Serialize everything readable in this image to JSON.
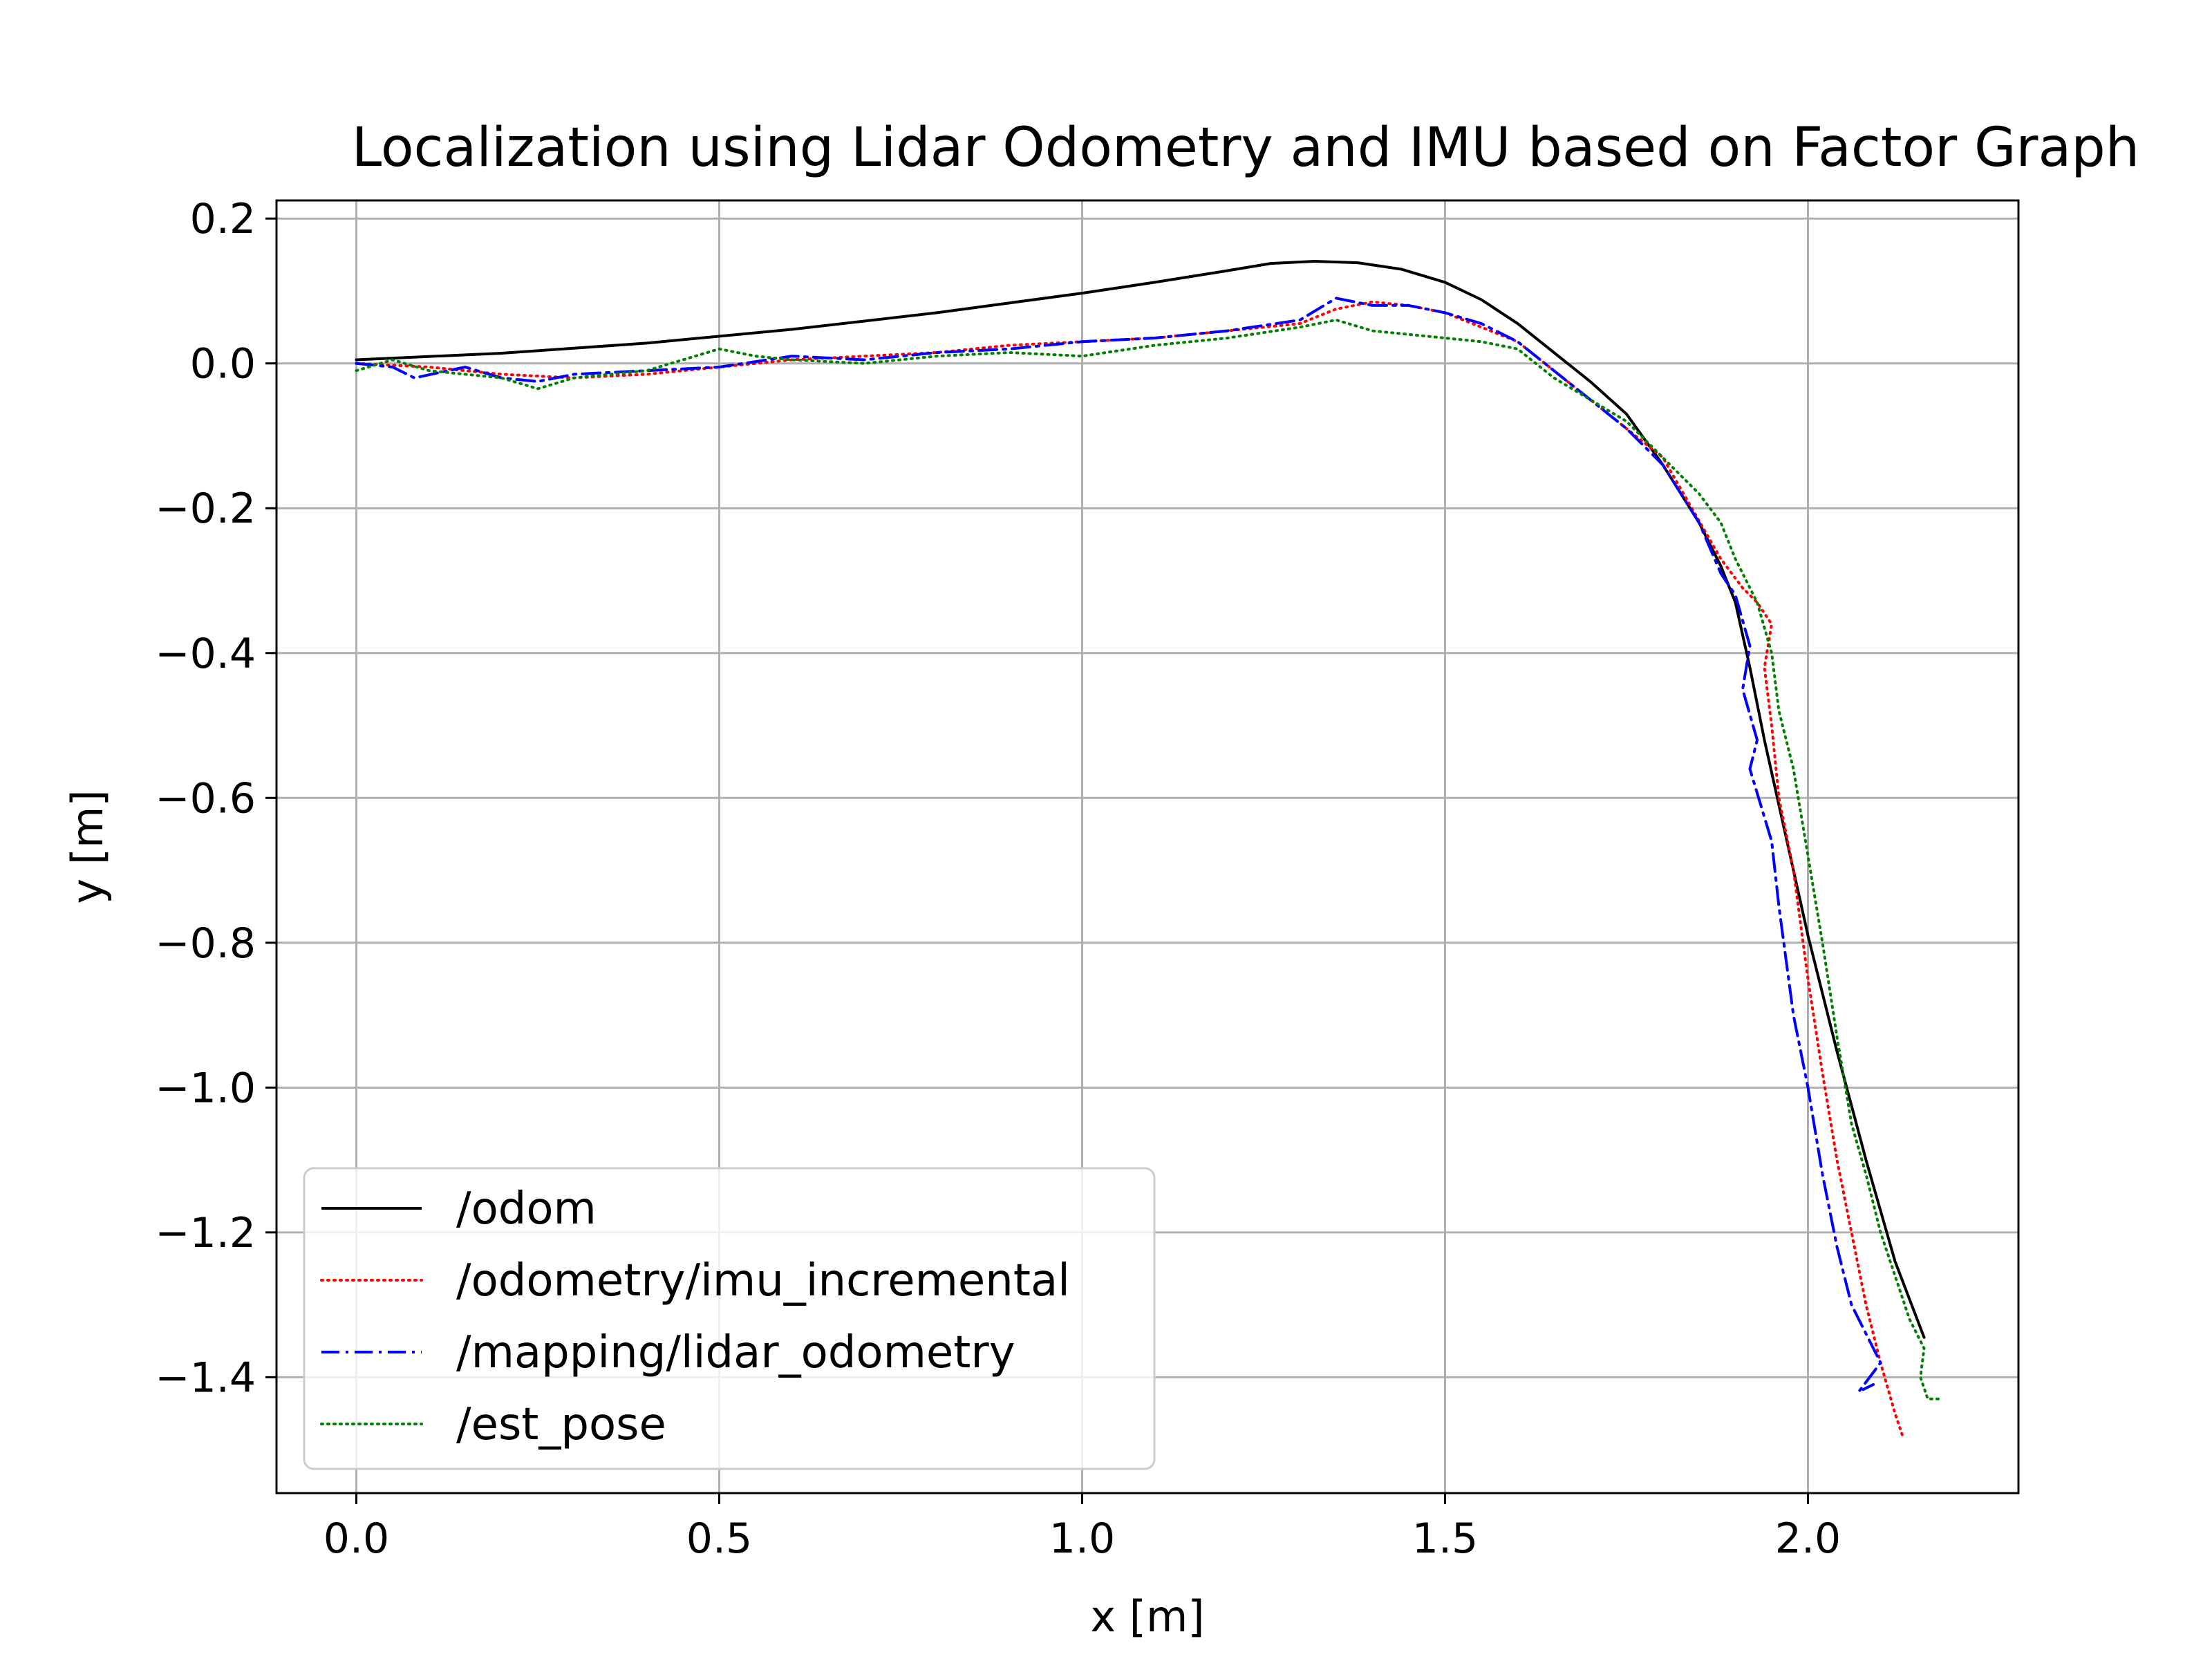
{
  "chart_data": {
    "type": "line",
    "title": "Localization using Lidar Odometry and IMU based on Factor Graph",
    "xlabel": "x [m]",
    "ylabel": "y [m]",
    "xlim": [
      -0.11,
      2.29
    ],
    "ylim": [
      -1.56,
      0.225
    ],
    "grid": true,
    "legend_position": "bottom-left",
    "x_ticks": [
      0.0,
      0.5,
      1.0,
      1.5,
      2.0
    ],
    "x_tick_labels": [
      "0.0",
      "0.5",
      "1.0",
      "1.5",
      "2.0"
    ],
    "y_ticks": [
      0.2,
      0.0,
      -0.2,
      -0.4,
      -0.6,
      -0.8,
      -1.0,
      -1.2,
      -1.4
    ],
    "y_tick_labels": [
      "0.2",
      "0.0",
      "−0.2",
      "−0.4",
      "−0.6",
      "−0.8",
      "−1.0",
      "−1.2",
      "−1.4"
    ],
    "series": [
      {
        "name": "/odom",
        "color": "#000000",
        "style": "solid",
        "x": [
          0.0,
          0.2,
          0.4,
          0.6,
          0.8,
          1.0,
          1.1,
          1.2,
          1.26,
          1.32,
          1.38,
          1.44,
          1.5,
          1.55,
          1.6,
          1.65,
          1.7,
          1.75,
          1.8,
          1.85,
          1.88,
          1.9,
          1.92,
          1.94,
          1.96,
          1.98,
          2.0,
          2.04,
          2.08,
          2.12,
          2.16
        ],
        "y": [
          0.005,
          0.014,
          0.028,
          0.047,
          0.07,
          0.097,
          0.112,
          0.128,
          0.138,
          0.141,
          0.139,
          0.13,
          0.112,
          0.088,
          0.055,
          0.015,
          -0.025,
          -0.07,
          -0.14,
          -0.22,
          -0.28,
          -0.33,
          -0.42,
          -0.52,
          -0.61,
          -0.7,
          -0.79,
          -0.95,
          -1.1,
          -1.24,
          -1.345
        ]
      },
      {
        "name": "/odometry/imu_incremental",
        "color": "#ff0000",
        "style": "dotted",
        "x": [
          0.0,
          0.1,
          0.2,
          0.3,
          0.4,
          0.5,
          0.6,
          0.7,
          0.8,
          0.9,
          1.0,
          1.1,
          1.2,
          1.3,
          1.35,
          1.4,
          1.45,
          1.5,
          1.55,
          1.6,
          1.65,
          1.7,
          1.75,
          1.8,
          1.84,
          1.88,
          1.91,
          1.93,
          1.95,
          1.94,
          1.95,
          1.96,
          1.98,
          2.0,
          2.02,
          2.04,
          2.06,
          2.08,
          2.1,
          2.12,
          2.13
        ],
        "y": [
          0.0,
          -0.005,
          -0.015,
          -0.02,
          -0.015,
          -0.005,
          0.005,
          0.01,
          0.015,
          0.025,
          0.03,
          0.035,
          0.045,
          0.055,
          0.075,
          0.085,
          0.08,
          0.07,
          0.05,
          0.03,
          -0.01,
          -0.05,
          -0.09,
          -0.13,
          -0.2,
          -0.27,
          -0.31,
          -0.33,
          -0.36,
          -0.42,
          -0.5,
          -0.6,
          -0.7,
          -0.85,
          -0.98,
          -1.1,
          -1.2,
          -1.3,
          -1.38,
          -1.45,
          -1.48
        ]
      },
      {
        "name": "/mapping/lidar_odometry",
        "color": "#0000ff",
        "style": "dashdot",
        "x": [
          0.0,
          0.05,
          0.08,
          0.15,
          0.2,
          0.25,
          0.3,
          0.4,
          0.5,
          0.6,
          0.7,
          0.8,
          0.9,
          1.0,
          1.1,
          1.2,
          1.3,
          1.35,
          1.4,
          1.45,
          1.5,
          1.55,
          1.6,
          1.65,
          1.7,
          1.75,
          1.8,
          1.85,
          1.88,
          1.9,
          1.92,
          1.91,
          1.93,
          1.92,
          1.95,
          1.96,
          1.98,
          2.0,
          2.02,
          2.04,
          2.06,
          2.08,
          2.1,
          2.07,
          2.09
        ],
        "y": [
          0.0,
          -0.005,
          -0.02,
          -0.005,
          -0.02,
          -0.025,
          -0.015,
          -0.01,
          -0.005,
          0.01,
          0.005,
          0.015,
          0.02,
          0.03,
          0.035,
          0.045,
          0.06,
          0.09,
          0.08,
          0.08,
          0.07,
          0.055,
          0.03,
          -0.01,
          -0.05,
          -0.09,
          -0.14,
          -0.22,
          -0.29,
          -0.32,
          -0.39,
          -0.45,
          -0.52,
          -0.56,
          -0.66,
          -0.75,
          -0.9,
          -1.0,
          -1.12,
          -1.22,
          -1.3,
          -1.34,
          -1.38,
          -1.42,
          -1.41
        ]
      },
      {
        "name": "/est_pose",
        "color": "#008000",
        "style": "dotted",
        "x": [
          0.0,
          0.05,
          0.1,
          0.2,
          0.25,
          0.3,
          0.4,
          0.5,
          0.55,
          0.6,
          0.7,
          0.8,
          0.9,
          1.0,
          1.1,
          1.2,
          1.3,
          1.35,
          1.4,
          1.45,
          1.5,
          1.55,
          1.6,
          1.65,
          1.7,
          1.75,
          1.8,
          1.85,
          1.88,
          1.9,
          1.93,
          1.95,
          1.96,
          1.98,
          2.0,
          2.02,
          2.04,
          2.06,
          2.08,
          2.1,
          2.12,
          2.14,
          2.16,
          2.155,
          2.165,
          2.18
        ],
        "y": [
          -0.01,
          0.005,
          -0.01,
          -0.02,
          -0.035,
          -0.02,
          -0.01,
          0.02,
          0.01,
          0.005,
          0.0,
          0.01,
          0.015,
          0.01,
          0.025,
          0.035,
          0.05,
          0.06,
          0.045,
          0.04,
          0.035,
          0.03,
          0.02,
          -0.02,
          -0.05,
          -0.08,
          -0.13,
          -0.18,
          -0.22,
          -0.27,
          -0.33,
          -0.4,
          -0.48,
          -0.56,
          -0.68,
          -0.8,
          -0.93,
          -1.05,
          -1.12,
          -1.2,
          -1.26,
          -1.32,
          -1.36,
          -1.4,
          -1.43,
          -1.43
        ]
      }
    ]
  }
}
